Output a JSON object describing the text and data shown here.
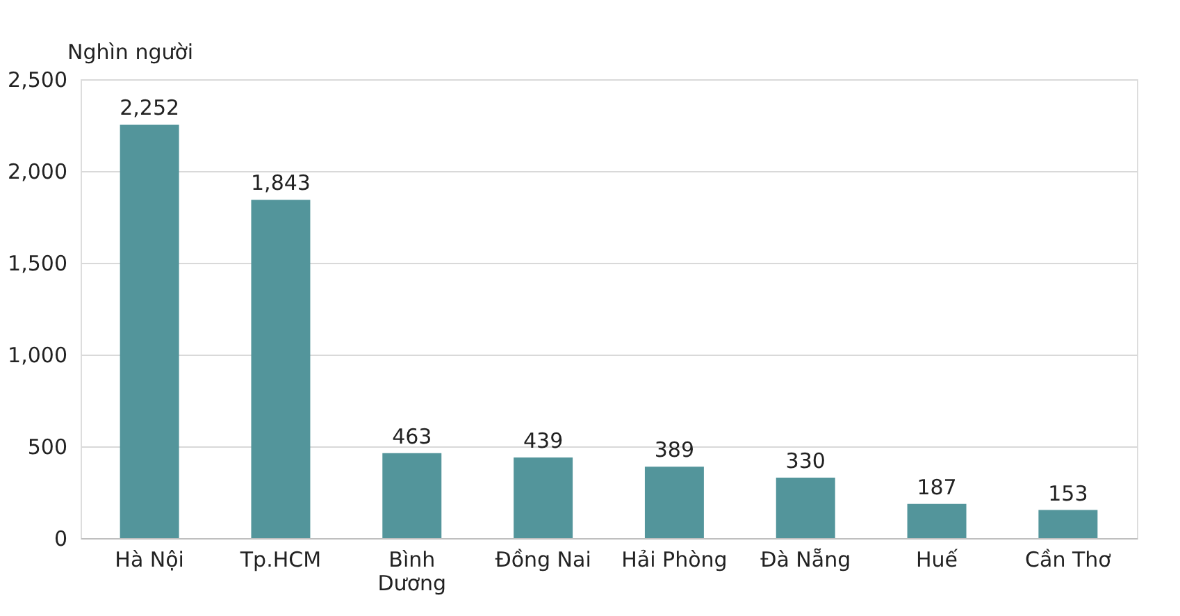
{
  "chart_data": {
    "type": "bar",
    "ylabel": "Nghìn người",
    "categories": [
      "Hà Nội",
      "Tp.HCM",
      "Bình Dương",
      "Đồng Nai",
      "Hải Phòng",
      "Đà Nẵng",
      "Huế",
      "Cần Thơ"
    ],
    "values": [
      2252,
      1843,
      463,
      439,
      389,
      330,
      187,
      153
    ],
    "value_labels": [
      "2,252",
      "1,843",
      "463",
      "439",
      "389",
      "330",
      "187",
      "153"
    ],
    "color": "#53959b",
    "ylim": [
      0,
      2500
    ],
    "yticks": [
      0,
      500,
      {
        "value": 1000,
        "label": "1,000"
      },
      {
        "value": 1500,
        "label": "1,500"
      },
      {
        "value": 2000,
        "label": "2,000"
      },
      {
        "value": 2500,
        "label": "2,500"
      }
    ],
    "grid": "y"
  }
}
